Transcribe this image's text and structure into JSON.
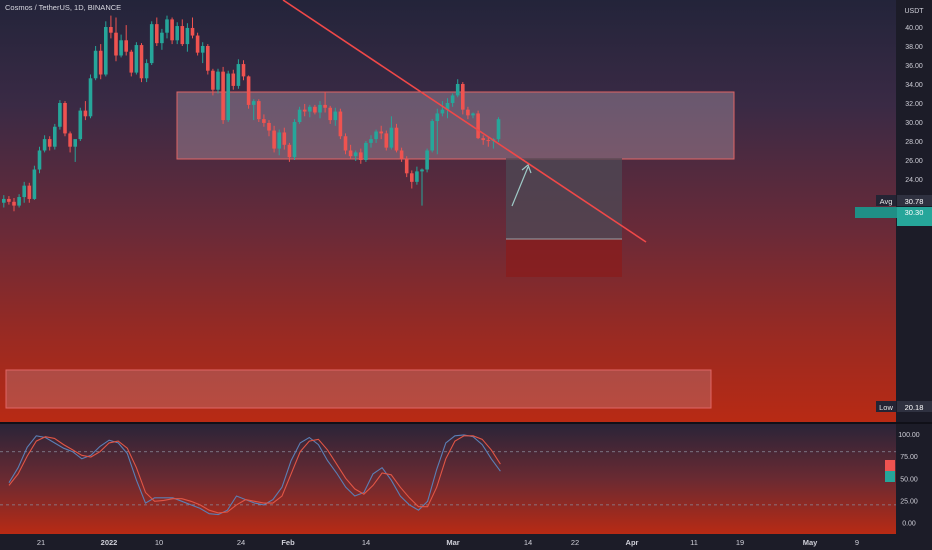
{
  "header": {
    "title": "Cosmos / TetherUS, 1D, BINANCE"
  },
  "price_axis": {
    "unit": "USDT",
    "ticks": [
      "40.00",
      "38.00",
      "36.00",
      "34.00",
      "32.00",
      "30.00",
      "28.00",
      "26.00",
      "24.00",
      "22.00"
    ],
    "avg_label": "Avg",
    "avg_value": "30.78",
    "last_value": "30.30",
    "low_label": "Low",
    "low_value": "20.18"
  },
  "time_axis": {
    "labels": [
      "21",
      "2022",
      "10",
      "24",
      "Feb",
      "14",
      "Mar",
      "14",
      "22",
      "Apr",
      "11",
      "19",
      "May",
      "9"
    ],
    "bold": [
      "2022",
      "Feb",
      "Mar",
      "Apr",
      "May"
    ]
  },
  "oscillator": {
    "ticks": [
      "100.00",
      "75.00",
      "50.00",
      "25.00",
      "0.00"
    ],
    "upper_level": 80,
    "lower_level": 20
  },
  "colors": {
    "up": "#26a69a",
    "down": "#ef5350",
    "trendline": "#f04848",
    "zone_fill": "#c9b0bd",
    "k_line": "#5b7fb5",
    "d_line": "#e05545"
  },
  "chart_data": [
    {
      "type": "candlestick",
      "title": "Cosmos / TetherUS, 1D, BINANCE",
      "ylabel": "USDT",
      "ylim": [
        19.7,
        41.2
      ],
      "candles": [
        [
          21.5,
          22.3,
          21.0,
          21.9
        ],
        [
          21.9,
          22.2,
          21.3,
          21.6
        ],
        [
          21.6,
          22.0,
          20.6,
          21.2
        ],
        [
          21.2,
          22.4,
          21.0,
          22.1
        ],
        [
          22.1,
          23.7,
          21.5,
          23.3
        ],
        [
          23.3,
          23.6,
          21.5,
          21.9
        ],
        [
          21.9,
          25.4,
          21.8,
          25.0
        ],
        [
          25.0,
          27.4,
          24.6,
          27.0
        ],
        [
          27.0,
          28.6,
          26.8,
          28.2
        ],
        [
          28.2,
          28.5,
          27.0,
          27.4
        ],
        [
          27.4,
          29.8,
          27.1,
          29.5
        ],
        [
          29.5,
          32.3,
          29.2,
          32.0
        ],
        [
          32.0,
          32.2,
          28.5,
          28.8
        ],
        [
          28.8,
          29.0,
          26.8,
          27.4
        ],
        [
          27.4,
          28.0,
          25.8,
          28.2
        ],
        [
          28.2,
          31.5,
          28.0,
          31.2
        ],
        [
          31.2,
          32.2,
          30.2,
          30.6
        ],
        [
          30.6,
          35.0,
          30.4,
          34.6
        ],
        [
          34.6,
          38.0,
          34.4,
          37.5
        ],
        [
          37.5,
          38.2,
          34.5,
          35.0
        ],
        [
          35.0,
          40.6,
          34.8,
          40.0
        ],
        [
          40.0,
          41.2,
          38.8,
          39.4
        ],
        [
          39.4,
          41.0,
          36.4,
          37.0
        ],
        [
          37.0,
          39.2,
          36.8,
          38.6
        ],
        [
          38.6,
          40.2,
          37.0,
          37.4
        ],
        [
          37.4,
          37.6,
          34.8,
          35.2
        ],
        [
          35.2,
          38.4,
          35.0,
          38.1
        ],
        [
          38.1,
          38.3,
          34.2,
          34.6
        ],
        [
          34.6,
          36.6,
          34.2,
          36.2
        ],
        [
          36.2,
          40.6,
          36.0,
          40.3
        ],
        [
          40.3,
          41.0,
          38.0,
          38.3
        ],
        [
          38.3,
          39.8,
          37.6,
          39.4
        ],
        [
          39.4,
          41.2,
          38.8,
          40.8
        ],
        [
          40.8,
          41.0,
          38.2,
          38.6
        ],
        [
          38.6,
          40.5,
          38.2,
          40.1
        ],
        [
          40.1,
          40.8,
          38.0,
          38.2
        ],
        [
          38.2,
          40.4,
          37.4,
          39.9
        ],
        [
          39.9,
          41.0,
          38.8,
          39.1
        ],
        [
          39.1,
          39.4,
          37.0,
          37.3
        ],
        [
          37.3,
          38.4,
          36.2,
          38.0
        ],
        [
          38.0,
          38.2,
          35.0,
          35.4
        ],
        [
          35.4,
          35.6,
          32.8,
          33.4
        ],
        [
          33.4,
          35.6,
          33.0,
          35.3
        ],
        [
          35.3,
          35.8,
          29.8,
          30.2
        ],
        [
          30.2,
          35.4,
          30.0,
          35.1
        ],
        [
          35.1,
          35.5,
          33.4,
          33.8
        ],
        [
          33.8,
          36.6,
          33.5,
          36.1
        ],
        [
          36.1,
          36.5,
          34.4,
          34.8
        ],
        [
          34.8,
          34.9,
          31.4,
          31.8
        ],
        [
          31.8,
          32.4,
          30.2,
          32.2
        ],
        [
          32.2,
          32.4,
          30.0,
          30.3
        ],
        [
          30.3,
          30.8,
          29.5,
          29.9
        ],
        [
          29.9,
          30.2,
          28.5,
          29.1
        ],
        [
          29.1,
          29.6,
          26.8,
          27.2
        ],
        [
          27.2,
          29.2,
          26.5,
          28.9
        ],
        [
          28.9,
          29.4,
          27.1,
          27.6
        ],
        [
          27.6,
          27.8,
          25.8,
          26.3
        ],
        [
          26.3,
          30.3,
          26.0,
          30.0
        ],
        [
          30.0,
          31.6,
          29.8,
          31.3
        ],
        [
          31.3,
          31.9,
          30.6,
          31.1
        ],
        [
          31.1,
          31.8,
          30.5,
          31.6
        ],
        [
          31.6,
          31.8,
          30.8,
          31.0
        ],
        [
          31.0,
          32.2,
          30.4,
          31.8
        ],
        [
          31.8,
          33.2,
          31.0,
          31.5
        ],
        [
          31.5,
          31.7,
          29.8,
          30.2
        ],
        [
          30.2,
          31.5,
          29.6,
          31.1
        ],
        [
          31.1,
          31.4,
          28.2,
          28.5
        ],
        [
          28.5,
          28.8,
          26.6,
          27.0
        ],
        [
          27.0,
          27.6,
          26.1,
          26.4
        ],
        [
          26.4,
          27.0,
          25.9,
          26.8
        ],
        [
          26.8,
          27.2,
          25.6,
          26.0
        ],
        [
          26.0,
          28.0,
          25.8,
          27.8
        ],
        [
          27.8,
          28.6,
          27.3,
          28.2
        ],
        [
          28.2,
          29.2,
          27.8,
          29.0
        ],
        [
          29.0,
          29.6,
          28.2,
          28.8
        ],
        [
          28.8,
          29.1,
          27.0,
          27.3
        ],
        [
          27.3,
          30.6,
          27.1,
          29.4
        ],
        [
          29.4,
          29.8,
          26.8,
          27.0
        ],
        [
          27.0,
          27.3,
          25.8,
          26.1
        ],
        [
          26.1,
          26.4,
          24.2,
          24.6
        ],
        [
          24.6,
          24.9,
          23.0,
          23.7
        ],
        [
          23.7,
          25.3,
          23.4,
          24.8
        ],
        [
          24.8,
          25.1,
          21.2,
          25.0
        ],
        [
          25.0,
          27.2,
          24.7,
          27.0
        ],
        [
          27.0,
          30.3,
          26.8,
          30.1
        ],
        [
          30.1,
          31.4,
          26.6,
          30.9
        ],
        [
          30.9,
          32.2,
          30.6,
          31.3
        ],
        [
          31.3,
          32.5,
          30.4,
          32.0
        ],
        [
          32.0,
          33.0,
          31.6,
          32.8
        ],
        [
          32.8,
          34.5,
          32.6,
          34.0
        ],
        [
          34.0,
          34.2,
          30.8,
          31.3
        ],
        [
          31.3,
          31.6,
          30.3,
          30.7
        ],
        [
          30.7,
          31.0,
          30.4,
          30.9
        ],
        [
          30.9,
          31.2,
          28.2,
          28.3
        ],
        [
          28.3,
          28.6,
          27.6,
          28.1
        ],
        [
          28.1,
          28.4,
          27.4,
          28.0
        ],
        [
          28.0,
          28.3,
          27.2,
          28.2
        ],
        [
          28.2,
          30.5,
          27.9,
          30.3
        ]
      ]
    },
    {
      "type": "line",
      "series": [
        {
          "values": [
            45,
            62,
            85,
            98,
            96,
            90,
            84,
            80,
            72,
            76,
            86,
            93,
            90,
            78,
            48,
            22,
            28,
            28,
            28,
            24,
            20,
            16,
            10,
            9,
            14,
            30,
            26,
            22,
            20,
            26,
            40,
            70,
            90,
            96,
            88,
            70,
            56,
            40,
            30,
            34,
            55,
            62,
            48,
            30,
            20,
            14,
            24,
            60,
            90,
            98,
            99,
            97,
            88,
            72,
            58
          ]
        },
        {
          "values": [
            42,
            55,
            75,
            92,
            97,
            95,
            88,
            82,
            76,
            74,
            80,
            90,
            92,
            84,
            62,
            34,
            24,
            25,
            27,
            27,
            24,
            20,
            14,
            11,
            12,
            20,
            26,
            24,
            22,
            22,
            30,
            55,
            80,
            92,
            94,
            82,
            66,
            50,
            38,
            32,
            42,
            56,
            54,
            40,
            28,
            18,
            18,
            40,
            72,
            92,
            98,
            98,
            94,
            82,
            66
          ]
        }
      ]
    }
  ]
}
